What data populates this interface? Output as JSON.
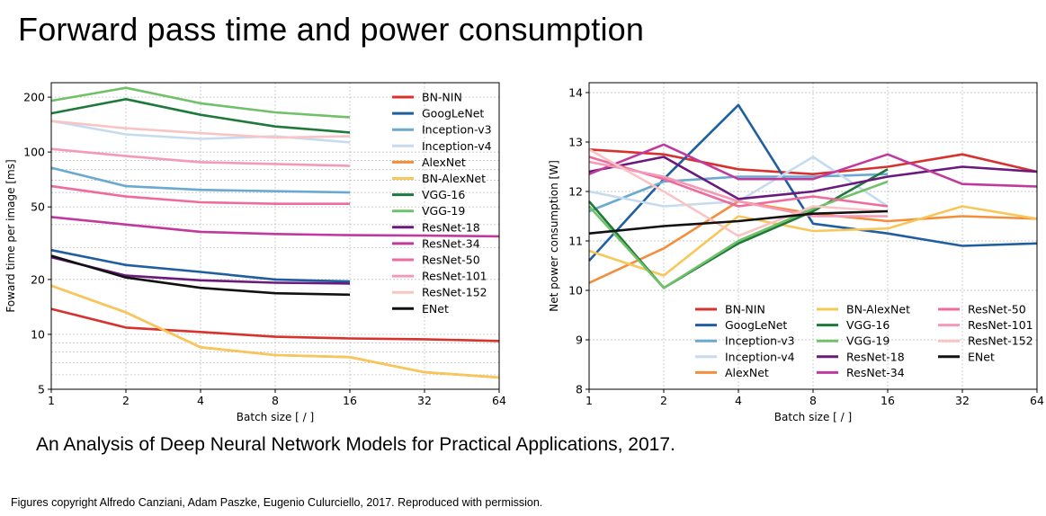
{
  "slide": {
    "title": "Forward pass time and power consumption",
    "caption": "An Analysis of Deep Neural Network Models for Practical Applications, 2017.",
    "copyright": "Figures copyright Alfredo Canziani, Adam Paszke, Eugenio Culurciello, 2017. Reproduced with permission."
  },
  "chart_data": [
    {
      "type": "line",
      "title": "",
      "xlabel": "Batch size [ / ]",
      "ylabel": "Foward time per image [ms]",
      "xscale": "log2",
      "yscale": "log",
      "x_ticks": [
        1,
        2,
        4,
        8,
        16,
        32,
        64
      ],
      "y_ticks": [
        5,
        10,
        20,
        50,
        100,
        200
      ],
      "xlim": [
        1,
        64
      ],
      "ylim": [
        5,
        240
      ],
      "grid": true,
      "legend_position": "right",
      "series": [
        {
          "name": "BN-NIN",
          "color": "#d6322e",
          "x": [
            1,
            2,
            4,
            8,
            16,
            32,
            64
          ],
          "values": [
            13.8,
            10.9,
            10.3,
            9.7,
            9.5,
            9.4,
            9.2
          ]
        },
        {
          "name": "GoogLeNet",
          "color": "#1f5fa0",
          "x": [
            1,
            2,
            4,
            8,
            16
          ],
          "values": [
            29,
            24,
            22,
            20,
            19.5
          ]
        },
        {
          "name": "Inception-v3",
          "color": "#6aa9d0",
          "x": [
            1,
            2,
            4,
            8,
            16
          ],
          "values": [
            82,
            65,
            62,
            61,
            60
          ]
        },
        {
          "name": "Inception-v4",
          "color": "#c6dbef",
          "x": [
            1,
            2,
            4,
            8,
            16
          ],
          "values": [
            148,
            125,
            118,
            122,
            113
          ]
        },
        {
          "name": "AlexNet",
          "color": "#f28e3c",
          "x": [
            1,
            2,
            4,
            8,
            16,
            32,
            64
          ],
          "values": [
            18.5,
            13.2,
            8.5,
            7.7,
            7.5,
            6.2,
            5.8
          ]
        },
        {
          "name": "BN-AlexNet",
          "color": "#f7c75a",
          "x": [
            1,
            2,
            4,
            8,
            16,
            32,
            64
          ],
          "values": [
            18.5,
            13.2,
            8.5,
            7.7,
            7.5,
            6.2,
            5.8
          ]
        },
        {
          "name": "VGG-16",
          "color": "#1e7a3a",
          "x": [
            1,
            2,
            4,
            8,
            16
          ],
          "values": [
            163,
            195,
            160,
            138,
            128
          ]
        },
        {
          "name": "VGG-19",
          "color": "#72c06a",
          "x": [
            1,
            2,
            4,
            8,
            16
          ],
          "values": [
            191,
            225,
            185,
            165,
            155
          ]
        },
        {
          "name": "ResNet-18",
          "color": "#6a1a7c",
          "x": [
            1,
            2,
            4,
            8,
            16
          ],
          "values": [
            26.5,
            21,
            19.8,
            19.2,
            19
          ]
        },
        {
          "name": "ResNet-34",
          "color": "#c03a9e",
          "x": [
            1,
            2,
            4,
            8,
            16,
            32,
            64
          ],
          "values": [
            44,
            40,
            36.5,
            35.5,
            35,
            34.8,
            34.5
          ]
        },
        {
          "name": "ResNet-50",
          "color": "#ee6b9c",
          "x": [
            1,
            2,
            4,
            8,
            16
          ],
          "values": [
            65,
            57,
            53,
            52,
            52
          ]
        },
        {
          "name": "ResNet-101",
          "color": "#f49ab7",
          "x": [
            1,
            2,
            4,
            8,
            16
          ],
          "values": [
            104,
            95,
            88,
            86,
            84
          ]
        },
        {
          "name": "ResNet-152",
          "color": "#f9c4c4",
          "x": [
            1,
            2,
            4,
            8,
            16
          ],
          "values": [
            148,
            135,
            127,
            120,
            122
          ]
        },
        {
          "name": "ENet",
          "color": "#111111",
          "x": [
            1,
            2,
            4,
            8,
            16
          ],
          "values": [
            27,
            20.5,
            18,
            16.8,
            16.5
          ]
        }
      ]
    },
    {
      "type": "line",
      "title": "",
      "xlabel": "Batch size [ / ]",
      "ylabel": "Net power consumption [W]",
      "xscale": "log2",
      "yscale": "linear",
      "x_ticks": [
        1,
        2,
        4,
        8,
        16,
        32,
        64
      ],
      "y_ticks": [
        8,
        9,
        10,
        11,
        12,
        13,
        14
      ],
      "xlim": [
        1,
        64
      ],
      "ylim": [
        8,
        14.2
      ],
      "grid": true,
      "legend_position": "bottom-right",
      "series": [
        {
          "name": "BN-NIN",
          "color": "#d6322e",
          "x": [
            1,
            2,
            4,
            8,
            16,
            32,
            64
          ],
          "values": [
            12.85,
            12.75,
            12.45,
            12.35,
            12.5,
            12.75,
            12.4
          ]
        },
        {
          "name": "GoogLeNet",
          "color": "#1f5fa0",
          "x": [
            1,
            2,
            4,
            8,
            16,
            32,
            64
          ],
          "values": [
            10.6,
            12.25,
            13.75,
            11.35,
            11.15,
            10.9,
            10.95
          ]
        },
        {
          "name": "Inception-v3",
          "color": "#6aa9d0",
          "x": [
            1,
            2,
            4,
            8,
            16
          ],
          "values": [
            11.6,
            12.2,
            12.3,
            12.3,
            12.35
          ]
        },
        {
          "name": "Inception-v4",
          "color": "#c6dbef",
          "x": [
            1,
            2,
            4,
            8,
            16
          ],
          "values": [
            12.0,
            11.7,
            11.8,
            12.7,
            11.7
          ]
        },
        {
          "name": "AlexNet",
          "color": "#f28e3c",
          "x": [
            1,
            2,
            4,
            8,
            16,
            32,
            64
          ],
          "values": [
            10.15,
            10.85,
            11.8,
            11.55,
            11.4,
            11.5,
            11.45
          ]
        },
        {
          "name": "BN-AlexNet",
          "color": "#f7c75a",
          "x": [
            1,
            2,
            4,
            8,
            16,
            32,
            64
          ],
          "values": [
            10.8,
            10.3,
            11.5,
            11.2,
            11.25,
            11.7,
            11.45
          ]
        },
        {
          "name": "VGG-16",
          "color": "#1e7a3a",
          "x": [
            1,
            2,
            4,
            8,
            16
          ],
          "values": [
            11.8,
            10.05,
            10.95,
            11.6,
            12.45
          ]
        },
        {
          "name": "VGG-19",
          "color": "#72c06a",
          "x": [
            1,
            2,
            4,
            8,
            16
          ],
          "values": [
            11.7,
            10.05,
            11.0,
            11.65,
            12.2
          ]
        },
        {
          "name": "ResNet-18",
          "color": "#6a1a7c",
          "x": [
            1,
            2,
            4,
            8,
            16,
            32,
            64
          ],
          "values": [
            12.4,
            12.7,
            11.85,
            12.0,
            12.3,
            12.5,
            12.4
          ]
        },
        {
          "name": "ResNet-34",
          "color": "#c03a9e",
          "x": [
            1,
            2,
            4,
            8,
            16,
            32,
            64
          ],
          "values": [
            12.35,
            12.95,
            12.25,
            12.25,
            12.75,
            12.15,
            12.1
          ]
        },
        {
          "name": "ResNet-50",
          "color": "#ee6b9c",
          "x": [
            1,
            2,
            4,
            8,
            16
          ],
          "values": [
            12.7,
            12.25,
            11.7,
            11.9,
            11.7
          ]
        },
        {
          "name": "ResNet-101",
          "color": "#f49ab7",
          "x": [
            1,
            2,
            4,
            8,
            16
          ],
          "values": [
            12.6,
            12.3,
            11.8,
            11.5,
            11.5
          ]
        },
        {
          "name": "ResNet-152",
          "color": "#f9c4c4",
          "x": [
            1,
            2,
            4,
            8,
            16
          ],
          "values": [
            12.85,
            12.0,
            11.1,
            11.7,
            11.6
          ]
        },
        {
          "name": "ENet",
          "color": "#111111",
          "x": [
            1,
            2,
            4,
            8,
            16
          ],
          "values": [
            11.15,
            11.3,
            11.4,
            11.55,
            11.6
          ]
        }
      ]
    }
  ]
}
